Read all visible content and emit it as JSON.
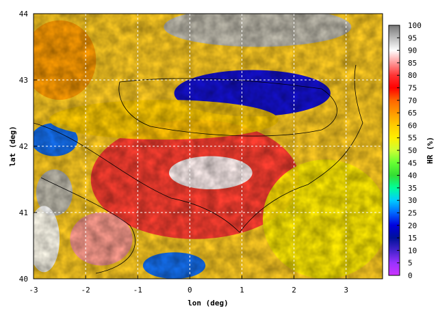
{
  "chart_data": {
    "type": "heatmap",
    "title": "",
    "xlabel": "lon (deg)",
    "ylabel": "lat (deg)",
    "xlim": [
      -3,
      3.7
    ],
    "ylim": [
      40,
      44
    ],
    "xticks": [
      "-3",
      "-2",
      "-1",
      "0",
      "1",
      "2",
      "3"
    ],
    "yticks": [
      "40",
      "41",
      "42",
      "43",
      "44"
    ],
    "grid": true,
    "colorbar": {
      "label": "HR (%)",
      "range": [
        0,
        100
      ],
      "ticks": [
        "0",
        "5",
        "10",
        "15",
        "20",
        "25",
        "30",
        "35",
        "40",
        "45",
        "50",
        "55",
        "60",
        "65",
        "70",
        "75",
        "80",
        "85",
        "90",
        "95",
        "100"
      ],
      "colors": [
        "#cc33ff",
        "#9933ff",
        "#4422cc",
        "#001199",
        "#0000dd",
        "#0066ff",
        "#00ccff",
        "#00ff99",
        "#33dd33",
        "#66ff33",
        "#ccff33",
        "#ffee00",
        "#ffcc00",
        "#ff9900",
        "#ff6600",
        "#ff0000",
        "#ff3333",
        "#ff9999",
        "#ffffff",
        "#bbbbbb",
        "#777777"
      ]
    },
    "features": [
      {
        "lon": 1.2,
        "lat": 42.8,
        "value": 22,
        "rx": 1.5,
        "ry": 0.35
      },
      {
        "lon": -2.6,
        "lat": 42.1,
        "value": 23,
        "rx": 0.45,
        "ry": 0.25
      },
      {
        "lon": -0.3,
        "lat": 40.2,
        "value": 27,
        "rx": 0.6,
        "ry": 0.2
      },
      {
        "lon": 0.1,
        "lat": 41.5,
        "value": 80,
        "rx": 2.0,
        "ry": 0.9
      },
      {
        "lon": -0.5,
        "lat": 42.4,
        "value": 60,
        "rx": 2.2,
        "ry": 0.3
      },
      {
        "lon": 2.6,
        "lat": 40.9,
        "value": 55,
        "rx": 1.2,
        "ry": 0.9
      },
      {
        "lon": -2.5,
        "lat": 43.3,
        "value": 63,
        "rx": 0.7,
        "ry": 0.6
      },
      {
        "lon": -2.6,
        "lat": 41.3,
        "value": 93,
        "rx": 0.35,
        "ry": 0.35
      },
      {
        "lon": -2.8,
        "lat": 40.6,
        "value": 92,
        "rx": 0.3,
        "ry": 0.5
      },
      {
        "lon": 1.3,
        "lat": 43.8,
        "value": 95,
        "rx": 1.8,
        "ry": 0.3
      },
      {
        "lon": -1.7,
        "lat": 40.6,
        "value": 85,
        "rx": 0.6,
        "ry": 0.4
      },
      {
        "lon": 0.4,
        "lat": 41.6,
        "value": 88,
        "rx": 0.8,
        "ry": 0.25
      }
    ]
  }
}
